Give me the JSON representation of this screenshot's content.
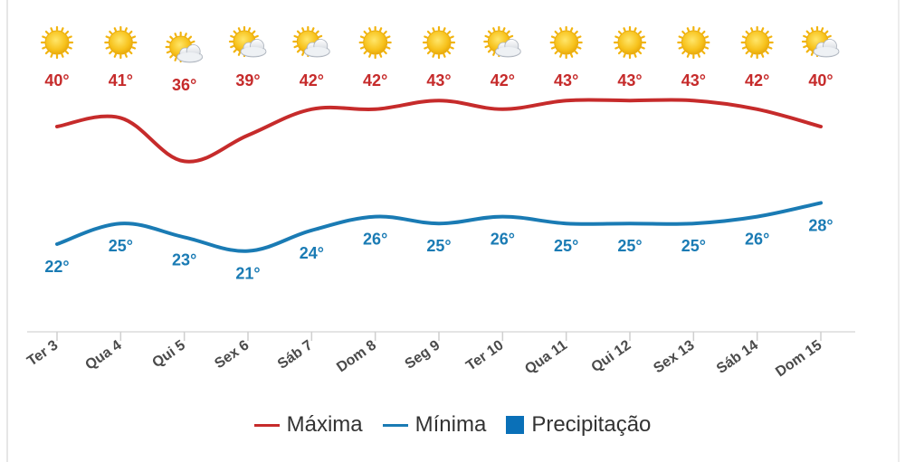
{
  "chart_data": {
    "type": "line",
    "categories": [
      "Ter 3",
      "Qua 4",
      "Qui 5",
      "Sex 6",
      "Sáb 7",
      "Dom 8",
      "Seg 9",
      "Ter 10",
      "Qua 11",
      "Qui 12",
      "Sex 13",
      "Sáb 14",
      "Dom 15"
    ],
    "icons": [
      "sun-icon",
      "sun-icon",
      "partly-cloudy-icon",
      "partly-cloudy-icon",
      "partly-cloudy-icon",
      "sun-icon",
      "sun-icon",
      "partly-cloudy-icon",
      "sun-icon",
      "sun-icon",
      "sun-icon",
      "sun-icon",
      "partly-cloudy-icon"
    ],
    "series": [
      {
        "name": "Máxima",
        "values": [
          40,
          41,
          36,
          39,
          42,
          42,
          43,
          42,
          43,
          43,
          43,
          42,
          40
        ],
        "color": "#c62b2b"
      },
      {
        "name": "Mínima",
        "values": [
          22,
          25,
          23,
          21,
          24,
          26,
          25,
          26,
          25,
          25,
          25,
          26,
          28
        ],
        "color": "#1a7bb4"
      }
    ],
    "value_suffix": "°",
    "legend": [
      {
        "label": "Máxima",
        "color": "#c62b2b",
        "marker": "line"
      },
      {
        "label": "Mínima",
        "color": "#1a7bb4",
        "marker": "line"
      },
      {
        "label": "Precipitação",
        "color": "#0a70b8",
        "marker": "box"
      }
    ],
    "legend_position": "bottom-center",
    "grid": false
  }
}
